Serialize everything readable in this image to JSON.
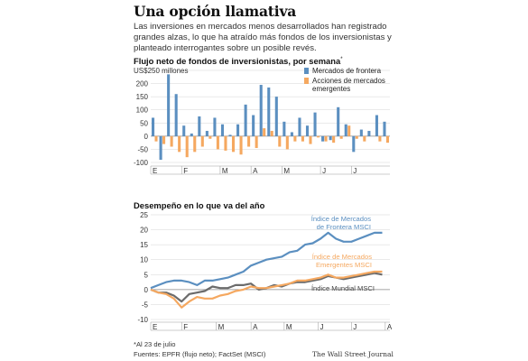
{
  "header": {
    "title": "Una opción llamativa",
    "subtitle": "Las inversiones en mercados menos desarrollados han registrado grandes alzas, lo que ha atraído más fondos de los inversionistas y planteado interrogantes sobre un posible revés."
  },
  "footer": {
    "note": "*Al 23 de julio",
    "sources": "Fuentes: EPFR (flujo neto); FactSet (MSCI)",
    "brand": "The Wall Street Journal"
  },
  "colors": {
    "blue": "#5b8fc0",
    "orange": "#f5a860",
    "gray": "#6b6b6b",
    "grid": "#d4d4d4"
  },
  "chart_data": [
    {
      "type": "bar",
      "title": "Flujo neto de fondos de inversionistas, por semana",
      "title_mark": "*",
      "ylabel": "US$250 millones",
      "ylim": [
        -100,
        250
      ],
      "yticks": [
        250,
        200,
        150,
        100,
        50,
        0,
        -50,
        -100
      ],
      "grid": true,
      "legend_position": "top-right",
      "month_labels": [
        {
          "label": "E",
          "week": 0
        },
        {
          "label": "F",
          "week": 4
        },
        {
          "label": "M",
          "week": 9
        },
        {
          "label": "A",
          "week": 13
        },
        {
          "label": "M",
          "week": 17
        },
        {
          "label": "J",
          "week": 22
        },
        {
          "label": "J",
          "week": 26
        }
      ],
      "series": [
        {
          "name": "Mercados de frontera",
          "color": "#5b8fc0",
          "values": [
            70,
            -90,
            235,
            160,
            40,
            10,
            75,
            20,
            70,
            45,
            5,
            45,
            120,
            80,
            195,
            185,
            150,
            55,
            15,
            70,
            40,
            90,
            -20,
            -15,
            110,
            45,
            -60,
            25,
            20,
            80,
            55
          ]
        },
        {
          "name": "Acciones de mercados emergentes",
          "color": "#f5a860",
          "values": [
            -20,
            -30,
            -40,
            -60,
            -80,
            -60,
            -40,
            -10,
            -50,
            -55,
            -60,
            -70,
            -40,
            -45,
            30,
            20,
            -40,
            -50,
            -20,
            -20,
            -30,
            -5,
            -20,
            -25,
            -10,
            40,
            -10,
            -20,
            0,
            -20,
            -25
          ]
        }
      ]
    },
    {
      "type": "line",
      "title": "Desempeño en lo que va del año",
      "ylim": [
        -10,
        25
      ],
      "yticks": [
        25,
        20,
        15,
        10,
        5,
        0,
        -5,
        -10
      ],
      "grid": true,
      "month_labels": [
        {
          "label": "E",
          "week": 0
        },
        {
          "label": "F",
          "week": 4
        },
        {
          "label": "M",
          "week": 8.5
        },
        {
          "label": "A",
          "week": 13
        },
        {
          "label": "M",
          "week": 17.3
        },
        {
          "label": "J",
          "week": 21.7
        },
        {
          "label": "J",
          "week": 26
        },
        {
          "label": "A",
          "week": 30.4
        }
      ],
      "series": [
        {
          "name": "Índice de Mercados de Frontera MSCI",
          "color": "#5b8fc0",
          "x": [
            0,
            1,
            2,
            3,
            4,
            5,
            6,
            7,
            8,
            9,
            10,
            11,
            12,
            13,
            14,
            15,
            16,
            17,
            18,
            19,
            20,
            21,
            22,
            23,
            24,
            25,
            26,
            27,
            28,
            29,
            30
          ],
          "values": [
            0.5,
            1.5,
            2.5,
            3,
            3,
            2.5,
            1.5,
            3,
            3,
            3.5,
            4,
            5,
            6,
            8,
            9,
            10,
            10.5,
            11,
            12.5,
            13,
            15,
            15.5,
            17,
            19,
            17,
            16,
            16,
            17,
            18,
            19,
            19
          ]
        },
        {
          "name": "Índice de Mercados Emergentes MSCI",
          "color": "#f5a860",
          "x": [
            0,
            1,
            2,
            3,
            4,
            5,
            6,
            7,
            8,
            9,
            10,
            11,
            12,
            13,
            14,
            15,
            16,
            17,
            18,
            19,
            20,
            21,
            22,
            23,
            24,
            25,
            26,
            27,
            28,
            29,
            30
          ],
          "values": [
            0,
            -1,
            -1.5,
            -3,
            -6,
            -4,
            -2.5,
            -3,
            -3,
            -2,
            -1.5,
            -0.5,
            0,
            1,
            0.5,
            0.5,
            1,
            1.5,
            2,
            3,
            3,
            3.5,
            4,
            5,
            4,
            4,
            4.5,
            5,
            5.5,
            6,
            6
          ]
        },
        {
          "name": "Índice Mundial MSCI",
          "color": "#6b6b6b",
          "x": [
            0,
            1,
            2,
            3,
            4,
            5,
            6,
            7,
            8,
            9,
            10,
            11,
            12,
            13,
            14,
            15,
            16,
            17,
            18,
            19,
            20,
            21,
            22,
            23,
            24,
            25,
            26,
            27,
            28,
            29,
            30
          ],
          "values": [
            0,
            -1,
            -1,
            -2,
            -4,
            -1.5,
            -1,
            -0.5,
            1,
            0.5,
            0.5,
            1.5,
            1.5,
            2,
            0,
            0.5,
            1.5,
            1,
            2,
            2.5,
            2.5,
            3,
            3.5,
            4.5,
            4,
            3.5,
            4,
            4.5,
            5,
            5.5,
            5
          ]
        }
      ]
    }
  ]
}
